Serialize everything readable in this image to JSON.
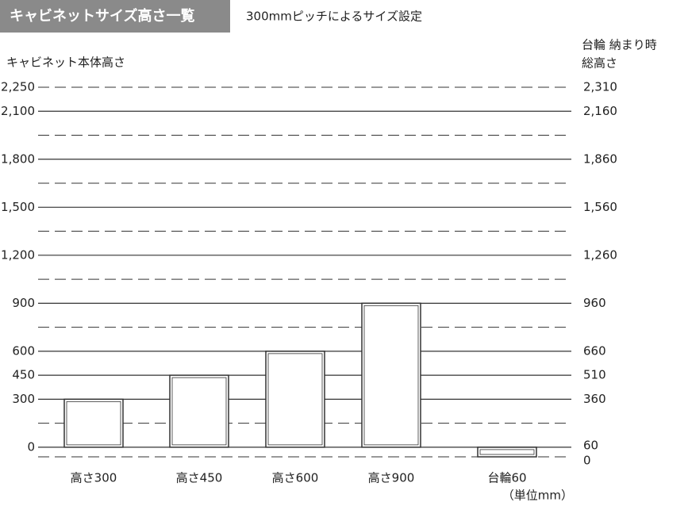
{
  "chart_data": {
    "type": "bar",
    "title": "キャビネットサイズ高さ一覧",
    "subtitle": "300mmピッチによるサイズ設定",
    "ylabel": "キャビネット本体高さ",
    "y2label": [
      "台輪 納まり時",
      "総高さ"
    ],
    "unit_note": "（単位mm）",
    "categories": [
      "高さ300",
      "高さ450",
      "高さ600",
      "高さ900",
      "台輪60"
    ],
    "series": [
      {
        "values": [
          300,
          450,
          600,
          900,
          null
        ]
      },
      {
        "axis": "y2",
        "values": [
          null,
          null,
          null,
          null,
          60
        ]
      }
    ],
    "ylim": [
      -60,
      2250
    ],
    "yticks": [
      0,
      300,
      450,
      600,
      900,
      {
        "value": 1200,
        "label": "1,200"
      },
      {
        "value": 1500,
        "label": "1,500"
      },
      {
        "value": 1800,
        "label": "1,800"
      },
      {
        "value": 2100,
        "label": "2,100"
      },
      {
        "value": 2250,
        "label": "2,250"
      }
    ],
    "y2lim": [
      0,
      2310
    ],
    "y2ticks": [
      0,
      60,
      360,
      510,
      660,
      960,
      {
        "value": 1260,
        "label": "1,260"
      },
      {
        "value": 1560,
        "label": "1,560"
      },
      {
        "value": 1860,
        "label": "1,860"
      },
      {
        "value": 2160,
        "label": "2,160"
      },
      {
        "value": 2310,
        "label": "2,310"
      }
    ],
    "dashed_grid": [
      -60,
      150,
      750,
      1050,
      1350,
      1650,
      1950,
      2250
    ],
    "bar_color": "#ffffff",
    "line_color": "#333333",
    "header_color": "#8a8a8a"
  }
}
